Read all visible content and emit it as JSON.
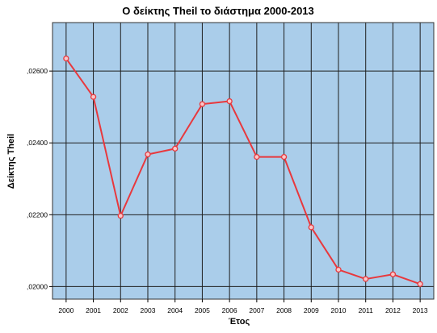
{
  "chart_data": {
    "type": "line",
    "title": "Ο δείκτης Theil το διάστημα 2000-2013",
    "xlabel": "Έτος",
    "ylabel": "Δείκτης Theil",
    "categories": [
      "2000",
      "2001",
      "2002",
      "2003",
      "2004",
      "2005",
      "2006",
      "2007",
      "2008",
      "2009",
      "2010",
      "2011",
      "2012",
      "2013"
    ],
    "series": [
      {
        "values": [
          0.02635,
          0.02528,
          0.02197,
          0.02368,
          0.02384,
          0.02508,
          0.02516,
          0.02361,
          0.02361,
          0.02165,
          0.02047,
          0.02021,
          0.02034,
          0.02007
        ]
      }
    ],
    "ylim": [
      0.01965,
      0.02735
    ],
    "yticks": [
      0.02,
      0.022,
      0.024,
      0.026
    ],
    "ytick_labels": [
      ",02000",
      ",02200",
      ",02400",
      ",02600"
    ],
    "grid": true,
    "colors": {
      "plot_background": "#aacdea",
      "grid": "#1f1f1f",
      "line": "#e8383d",
      "marker_fill": "#f9c6c8"
    }
  }
}
